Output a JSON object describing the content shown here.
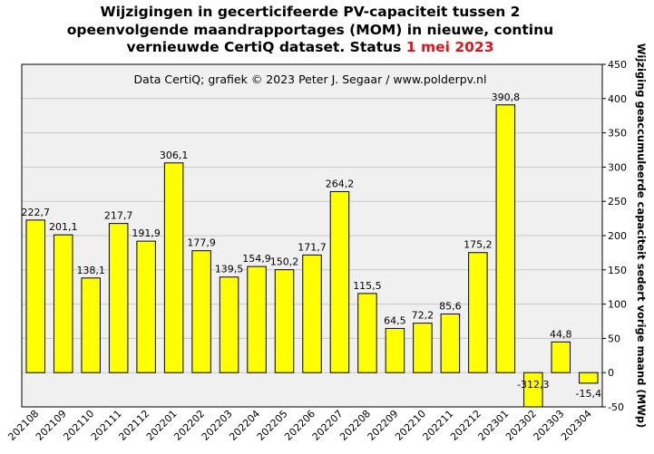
{
  "chart_data": {
    "type": "bar",
    "title_lines": [
      "Wijzigingen  in gecerticifeerde PV-capaciteit tussen 2",
      "opeenvolgende maandrapportages (MOM) in nieuwe, continu"
    ],
    "title_line3_prefix": "vernieuwde CertiQ dataset. Status ",
    "title_line3_highlight": "1 mei 2023",
    "credit": "Data CertiQ; grafiek © 2023 Peter J. Segaar / www.polderpv.nl",
    "ylabel": "Wijziging geaccumuleerde capaciteit sedert vorige maand (MWp)",
    "y_axis_position": "right",
    "ylim": [
      -50,
      450
    ],
    "yticks": [
      -50,
      0,
      50,
      100,
      150,
      200,
      250,
      300,
      350,
      400,
      450
    ],
    "grid": true,
    "categories": [
      "202108",
      "202109",
      "202110",
      "202111",
      "202112",
      "202201",
      "202202",
      "202203",
      "202204",
      "202205",
      "202206",
      "202207",
      "202208",
      "202209",
      "202210",
      "202211",
      "202212",
      "202301",
      "202302",
      "202303",
      "202304"
    ],
    "values": [
      222.7,
      201.1,
      138.1,
      217.7,
      191.9,
      306.1,
      177.9,
      139.5,
      154.9,
      150.2,
      171.7,
      264.2,
      115.5,
      64.5,
      72.2,
      85.6,
      175.2,
      390.8,
      -312.3,
      44.8,
      -15.4
    ],
    "value_labels": [
      "222,7",
      "201,1",
      "138,1",
      "217,7",
      "191,9",
      "306,1",
      "177,9",
      "139,5",
      "154,9",
      "150,2",
      "171,7",
      "264,2",
      "115,5",
      "64,5",
      "72,2",
      "85,6",
      "175,2",
      "390,8",
      "-312,3",
      "44,8",
      "-15,4"
    ],
    "bar_color": "#ffff00",
    "bar_edge_color": "#000000",
    "plot_background": "#f0f0f0",
    "highlight_color": "#e8121a"
  }
}
